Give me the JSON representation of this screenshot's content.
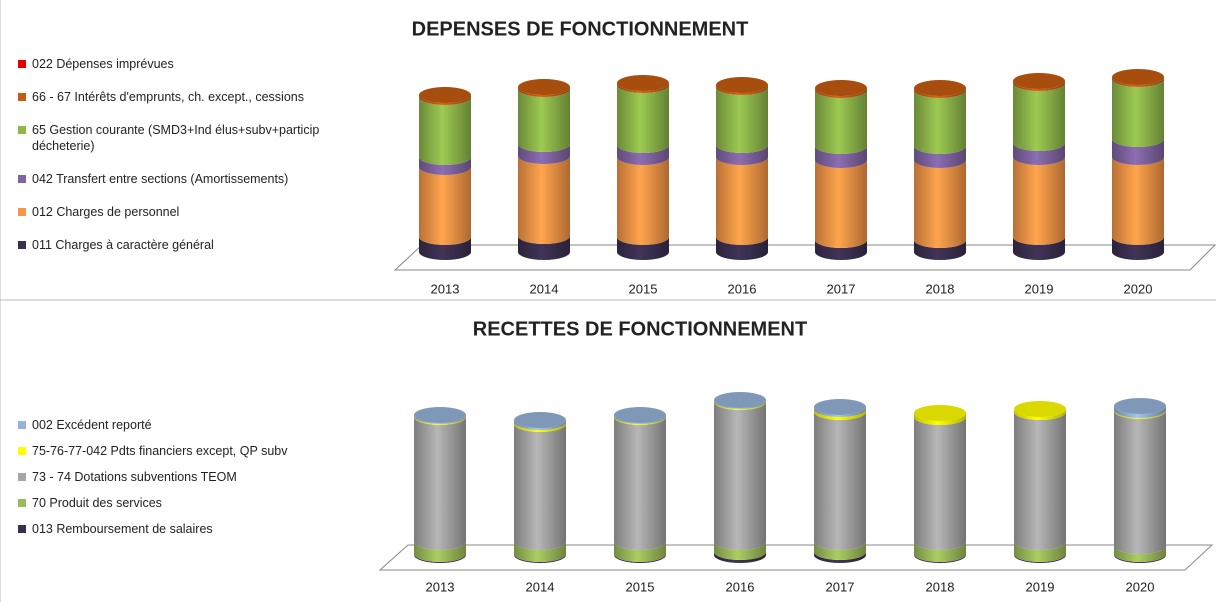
{
  "chart_data": [
    {
      "type": "bar",
      "stacked": true,
      "title": "DEPENSES DE FONCTIONNEMENT",
      "categories": [
        "2013",
        "2014",
        "2015",
        "2016",
        "2017",
        "2018",
        "2019",
        "2020"
      ],
      "series": [
        {
          "name": "011 Charges à caractère général",
          "color": "#3b2f50",
          "values": [
            15,
            16,
            15,
            15,
            12,
            12,
            15,
            15
          ]
        },
        {
          "name": "012 Charges de personnel",
          "color": "#f79646",
          "values": [
            70,
            80,
            80,
            80,
            80,
            80,
            80,
            80
          ]
        },
        {
          "name": "042 Transfert entre sections (Amortissements)",
          "color": "#8064a2",
          "values": [
            10,
            12,
            12,
            12,
            14,
            14,
            14,
            18
          ]
        },
        {
          "name": "65 Gestion courante (SMD3+Ind élus+subv+particip décheterie)",
          "color": "#8fb84a",
          "values": [
            60,
            55,
            60,
            58,
            56,
            56,
            60,
            60
          ]
        },
        {
          "name": "66 - 67 Intérêts d'emprunts, ch. except., cessions",
          "color": "#c55a11",
          "values": [
            2,
            2,
            2,
            2,
            2,
            2,
            2,
            2
          ]
        },
        {
          "name": "022 Dépenses imprévues",
          "color": "#e00000",
          "values": [
            0,
            0,
            0,
            0,
            0,
            0,
            0,
            0
          ]
        }
      ]
    },
    {
      "type": "bar",
      "stacked": true,
      "title": "RECETTES DE FONCTIONNEMENT",
      "categories": [
        "2013",
        "2014",
        "2015",
        "2016",
        "2017",
        "2018",
        "2019",
        "2020"
      ],
      "series": [
        {
          "name": "013 Remboursement de salaires",
          "color": "#3b2f50",
          "values": [
            1,
            1,
            1,
            3,
            3,
            1,
            1,
            1
          ]
        },
        {
          "name": "70 Produit des services",
          "color": "#9bbb59",
          "values": [
            12,
            12,
            12,
            10,
            10,
            12,
            12,
            8
          ]
        },
        {
          "name": "73 - 74 Dotations subventions TEOM",
          "color": "#a6a6a6",
          "values": [
            125,
            118,
            125,
            140,
            130,
            125,
            130,
            135
          ]
        },
        {
          "name": "75-76-77-042 Pdts financiers except, QP subv",
          "color": "#ffff00",
          "values": [
            1,
            2,
            1,
            1,
            3,
            4,
            3,
            1
          ]
        },
        {
          "name": "002 Excédent reporté",
          "color": "#95b3d7",
          "values": [
            1,
            2,
            1,
            1,
            2,
            0,
            0,
            4
          ]
        }
      ]
    }
  ]
}
